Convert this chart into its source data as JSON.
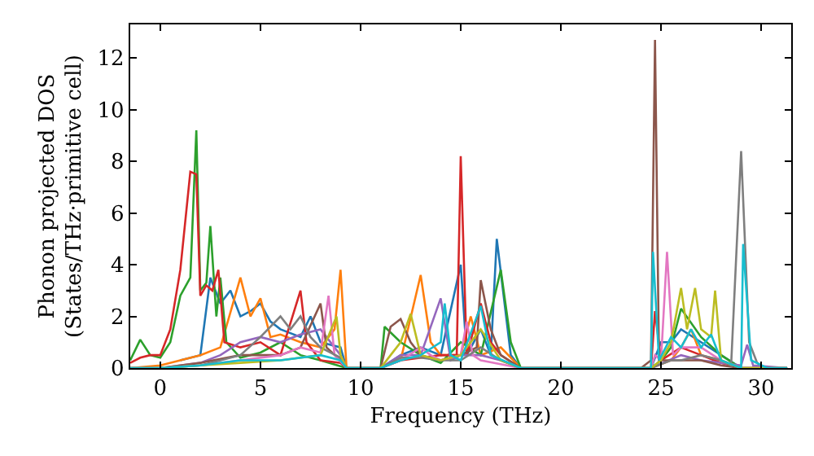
{
  "chart_data": {
    "type": "line",
    "xlabel": "Frequency (THz)",
    "ylabel": "Phonon projected DOS\n(States/THz·primitive cell)",
    "xlim": [
      -1.5,
      31.5
    ],
    "ylim": [
      0,
      13.3
    ],
    "xticks": [
      0,
      5,
      10,
      15,
      20,
      25,
      30
    ],
    "yticks": [
      0,
      2,
      4,
      6,
      8,
      10,
      12
    ],
    "marker": "none",
    "line_style": "solid",
    "series": [
      {
        "color": "#1f77b4",
        "x": [
          1,
          2,
          2.5,
          3,
          3.5,
          4,
          4.5,
          5,
          5.5,
          6,
          7,
          7.5,
          8,
          9,
          9.3,
          11,
          12,
          13,
          14,
          15,
          15.3,
          16,
          16.5,
          16.8,
          17.5,
          18,
          24.5,
          25,
          25.5,
          26,
          27,
          28,
          29,
          31.3
        ],
        "values": [
          0.3,
          0.5,
          3.5,
          2.5,
          3.0,
          2.0,
          2.2,
          2.5,
          1.8,
          1.5,
          1.2,
          2.0,
          1.0,
          0.8,
          0,
          0,
          0.5,
          0.8,
          0.5,
          4.0,
          0.5,
          1.5,
          0.5,
          5.0,
          0.5,
          0,
          0,
          1.0,
          1.0,
          1.5,
          1.0,
          0.5,
          0,
          0
        ]
      },
      {
        "color": "#ff7f0e",
        "x": [
          -1.5,
          0,
          1,
          2,
          3,
          4,
          4.5,
          5,
          5.5,
          6,
          7,
          8,
          8.7,
          9,
          9.3,
          11,
          12,
          13,
          13.5,
          14,
          15,
          15.5,
          16,
          17,
          18,
          24.5,
          25.5,
          26,
          26.5,
          27,
          28
        ],
        "values": [
          0,
          0.1,
          0.3,
          0.5,
          0.8,
          3.5,
          2.0,
          2.7,
          1.2,
          1.3,
          1.0,
          0.8,
          1.5,
          3.8,
          0,
          0,
          0.3,
          3.6,
          1.0,
          0.5,
          0.5,
          2.0,
          0.5,
          0.8,
          0,
          0,
          0.3,
          0.8,
          1.5,
          0.5,
          0.3
        ]
      },
      {
        "color": "#2ca02c",
        "x": [
          -1.5,
          -1,
          -0.5,
          0,
          0.5,
          1,
          1.5,
          1.8,
          2,
          2.3,
          2.5,
          2.8,
          3,
          3.3,
          4,
          5,
          6,
          7,
          8,
          9.3,
          11,
          11.2,
          12,
          13,
          14,
          15,
          16,
          17,
          17.5,
          18,
          24.5,
          25,
          25.5,
          26,
          27,
          28,
          29,
          31.3
        ],
        "values": [
          0.3,
          1.1,
          0.5,
          0.4,
          1.0,
          2.8,
          3.5,
          9.2,
          3.0,
          3.3,
          5.5,
          2.0,
          3.5,
          1.0,
          0.4,
          0.6,
          1.0,
          0.5,
          0.3,
          0,
          0,
          1.6,
          1.0,
          0.5,
          0.2,
          1.0,
          0.5,
          3.8,
          1.0,
          0,
          0,
          0.3,
          0.8,
          2.3,
          1.2,
          0.5,
          0,
          0
        ]
      },
      {
        "color": "#d62728",
        "x": [
          -1.5,
          -1,
          -0.5,
          0,
          0.5,
          1,
          1.5,
          1.8,
          2,
          2.3,
          2.6,
          2.9,
          3.2,
          4,
          5,
          6,
          7,
          7.3,
          8,
          9,
          9.3,
          11,
          12,
          14,
          14.8,
          15,
          15.3,
          16,
          16.5,
          17,
          18,
          24.5,
          24.7,
          25,
          26,
          27,
          28,
          29,
          31.3
        ],
        "values": [
          0.2,
          0.4,
          0.5,
          0.5,
          1.5,
          3.8,
          7.6,
          7.5,
          2.8,
          3.2,
          3.0,
          3.8,
          1.0,
          0.8,
          1.0,
          0.5,
          3.0,
          1.0,
          0.3,
          0.2,
          0,
          0,
          0.3,
          0.5,
          0.5,
          8.2,
          0.5,
          2.5,
          1.0,
          0.5,
          0,
          0,
          2.2,
          0.3,
          0.8,
          0.5,
          0.2,
          0,
          0
        ]
      },
      {
        "color": "#9467bd",
        "x": [
          -1.5,
          0,
          2,
          3,
          4,
          5,
          6,
          7,
          8,
          9,
          9.3,
          11,
          12,
          13,
          14,
          14.5,
          15,
          16,
          17,
          18,
          24.5,
          26,
          27,
          28,
          29,
          29.3,
          29.6,
          31.3
        ],
        "values": [
          0,
          0,
          0.2,
          0.5,
          1.0,
          1.2,
          1.0,
          1.3,
          1.5,
          0.5,
          0,
          0,
          0.5,
          0.5,
          2.7,
          0.3,
          0.5,
          0.5,
          0.3,
          0,
          0,
          0.5,
          0.3,
          0.2,
          0.1,
          0.9,
          0.1,
          0
        ]
      },
      {
        "color": "#8c564b",
        "x": [
          -1.5,
          0,
          2,
          4,
          6,
          7,
          8,
          8.3,
          9,
          9.3,
          11,
          11.5,
          12,
          12.5,
          13,
          14,
          15,
          15.8,
          16,
          16.5,
          17,
          18,
          24,
          24.5,
          24.7,
          24.9,
          26,
          27,
          28,
          29,
          31.3
        ],
        "values": [
          0,
          0,
          0.2,
          0.5,
          0.5,
          0.8,
          2.5,
          0.8,
          0.3,
          0,
          0,
          1.6,
          1.9,
          1.0,
          0.5,
          0.3,
          0.5,
          0.8,
          3.4,
          1.5,
          0.5,
          0,
          0,
          0.3,
          12.7,
          0.3,
          0.3,
          0.3,
          0.1,
          0,
          0
        ]
      },
      {
        "color": "#e377c2",
        "x": [
          -1.5,
          0,
          2,
          4,
          6,
          7,
          8,
          8.4,
          8.7,
          9.3,
          11,
          12,
          13,
          13.5,
          14,
          15,
          15.3,
          15.6,
          16,
          18,
          24.5,
          24.7,
          25,
          25.3,
          25.6,
          26,
          27,
          28,
          29,
          31.3
        ],
        "values": [
          0,
          0,
          0.1,
          0.3,
          0.5,
          0.8,
          0.6,
          2.8,
          0.5,
          0,
          0,
          0.3,
          0.8,
          0.5,
          0.3,
          0.5,
          1.8,
          0.5,
          0.3,
          0,
          0,
          0.5,
          0.3,
          4.5,
          0.5,
          0.8,
          0.8,
          0.3,
          0,
          0
        ]
      },
      {
        "color": "#7f7f7f",
        "x": [
          -1.5,
          0,
          2,
          4,
          5,
          6,
          6.5,
          7,
          7.5,
          8,
          9,
          9.3,
          11,
          12,
          13,
          14,
          15,
          16,
          17,
          18,
          24.5,
          25.5,
          26,
          27,
          28,
          28.5,
          29,
          29.4,
          29.8,
          30.2,
          31.3
        ],
        "values": [
          0,
          0,
          0.1,
          0.5,
          1.2,
          2.0,
          1.5,
          2.0,
          1.2,
          0.8,
          0.4,
          0,
          0,
          0.4,
          0.4,
          0.3,
          0.3,
          0.8,
          0.3,
          0,
          0,
          0.3,
          0.3,
          0.5,
          0.3,
          0.1,
          8.4,
          1.0,
          0.2,
          0,
          0
        ]
      },
      {
        "color": "#bcbd22",
        "x": [
          -1.5,
          0,
          2,
          4,
          6,
          8,
          8.8,
          9,
          9.3,
          11,
          11.5,
          12,
          12.5,
          13,
          14,
          15,
          16,
          17,
          18,
          24.5,
          25,
          25.5,
          26,
          26.3,
          26.7,
          27,
          27.5,
          27.7,
          28,
          29,
          31.3
        ],
        "values": [
          0,
          0,
          0.1,
          0.2,
          0.3,
          0.5,
          2.0,
          0.5,
          0,
          0,
          0.5,
          1.0,
          2.1,
          0.5,
          0.3,
          0.5,
          1.5,
          0.3,
          0,
          0,
          0.3,
          1.0,
          3.1,
          1.5,
          3.1,
          1.5,
          1.2,
          3.0,
          0.3,
          0,
          0
        ]
      },
      {
        "color": "#17becf",
        "x": [
          -1.5,
          0,
          2,
          4,
          6,
          8,
          9,
          9.3,
          11,
          12,
          13,
          14,
          14.2,
          14.5,
          15,
          16,
          16.5,
          18,
          24.5,
          24.6,
          24.9,
          25.5,
          26,
          26.5,
          27,
          27.5,
          28,
          29,
          29.1,
          29.5,
          30.3,
          31.3
        ],
        "values": [
          0,
          0,
          0.1,
          0.3,
          0.3,
          0.5,
          0.3,
          0,
          0,
          0.3,
          0.5,
          1.0,
          2.5,
          0.5,
          0.3,
          2.4,
          0.5,
          0,
          0,
          4.5,
          0.3,
          1.2,
          0.8,
          1.5,
          0.8,
          1.3,
          0.3,
          0,
          4.8,
          0.3,
          0,
          0
        ]
      }
    ]
  }
}
